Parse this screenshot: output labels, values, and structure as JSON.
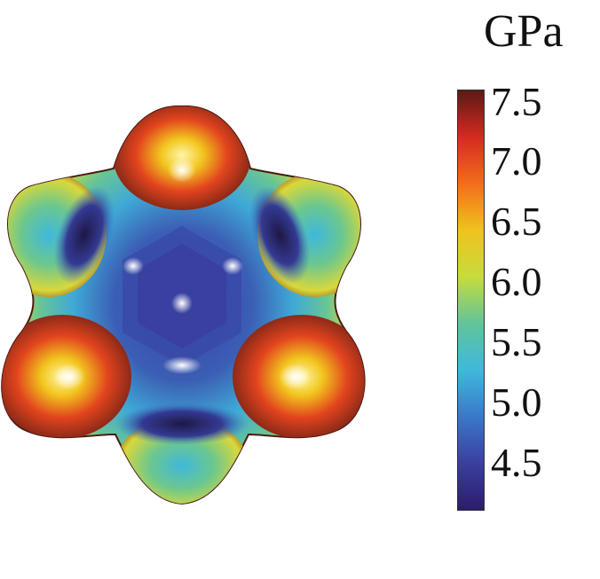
{
  "chart_data": {
    "type": "surface",
    "colorbar": {
      "unit": "GPa",
      "ticks": [
        "7.5",
        "7.0",
        "6.5",
        "6.0",
        "5.5",
        "5.0",
        "4.5"
      ],
      "tick_values": [
        7.5,
        7.0,
        6.5,
        6.0,
        5.5,
        5.0,
        4.5
      ],
      "range": [
        4.1,
        7.6
      ],
      "colormap": [
        "#2b1d6b",
        "#3a3f9e",
        "#3a78c9",
        "#3fb8dc",
        "#60c49a",
        "#c6dc3c",
        "#f0c21e",
        "#f36d1c",
        "#d52a20",
        "#5a1a14"
      ]
    }
  }
}
